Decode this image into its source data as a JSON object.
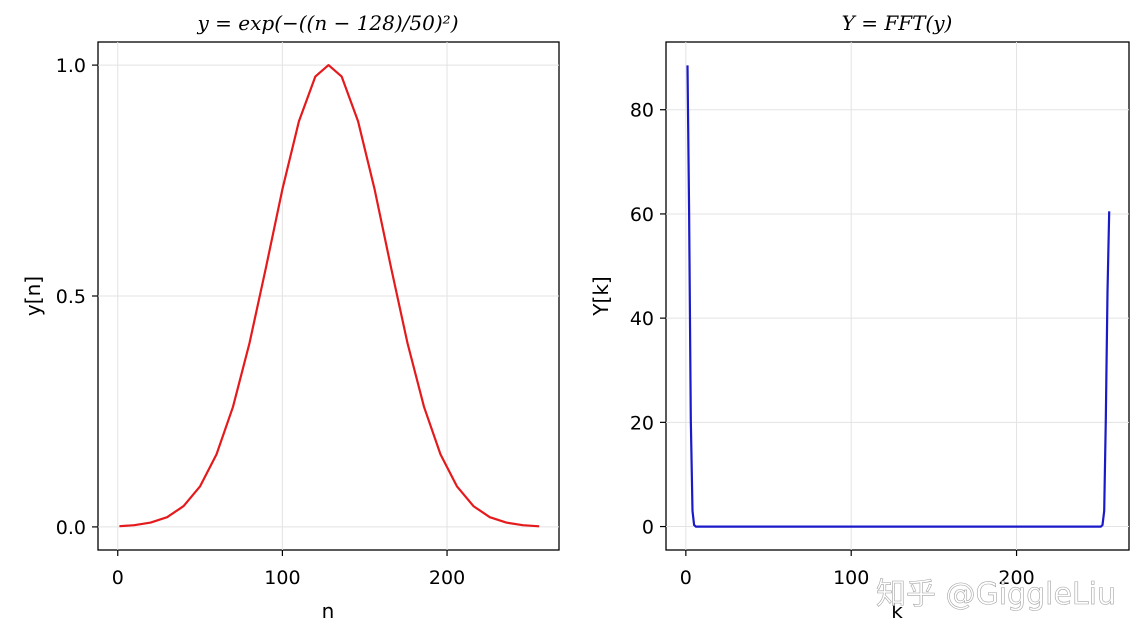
{
  "chart_data": [
    {
      "type": "line",
      "title": "y = exp(−((n − 128)/50)²)",
      "xlabel": "n",
      "ylabel": "y[n]",
      "xlim": [
        -12,
        268
      ],
      "ylim": [
        -0.05,
        1.05
      ],
      "xticks": [
        0,
        100,
        200
      ],
      "yticks": [
        0.0,
        0.5,
        1.0
      ],
      "xtick_labels": [
        "0",
        "100",
        "200"
      ],
      "ytick_labels": [
        "0.0",
        "0.5",
        "1.0"
      ],
      "grid": true,
      "color": "#e41a1c",
      "series": [
        {
          "x": [
            1,
            10,
            20,
            30,
            40,
            50,
            60,
            70,
            80,
            90,
            100,
            110,
            120,
            128,
            136,
            146,
            156,
            166,
            176,
            186,
            196,
            206,
            216,
            226,
            236,
            246,
            256
          ],
          "y": [
            0.0016,
            0.0038,
            0.0094,
            0.021,
            0.045,
            0.088,
            0.157,
            0.26,
            0.398,
            0.561,
            0.731,
            0.878,
            0.975,
            1.0,
            0.975,
            0.878,
            0.731,
            0.561,
            0.398,
            0.26,
            0.157,
            0.088,
            0.045,
            0.021,
            0.0094,
            0.0038,
            0.0014
          ]
        }
      ]
    },
    {
      "type": "line",
      "title": "Y = FFT(y)",
      "xlabel": "k",
      "ylabel": "Y[k]",
      "xlim": [
        -12,
        268
      ],
      "ylim": [
        -4.5,
        93
      ],
      "xticks": [
        0,
        100,
        200
      ],
      "yticks": [
        0,
        20,
        40,
        60,
        80
      ],
      "xtick_labels": [
        "0",
        "100",
        "200"
      ],
      "ytick_labels": [
        "0",
        "20",
        "40",
        "60",
        "80"
      ],
      "grid": true,
      "color": "#1a1ac8",
      "series": [
        {
          "x": [
            1,
            2,
            3,
            4,
            5,
            6,
            10,
            50,
            100,
            150,
            200,
            250,
            251,
            252,
            253,
            254,
            255,
            256
          ],
          "y": [
            88.5,
            60.5,
            20.5,
            3.0,
            0.3,
            0.0,
            0.0,
            0.0,
            0.0,
            0.0,
            0.0,
            0.0,
            0.0,
            0.3,
            3.0,
            20.5,
            45.0,
            60.5
          ]
        }
      ]
    }
  ],
  "watermark": "知乎 @GiggleLiu"
}
